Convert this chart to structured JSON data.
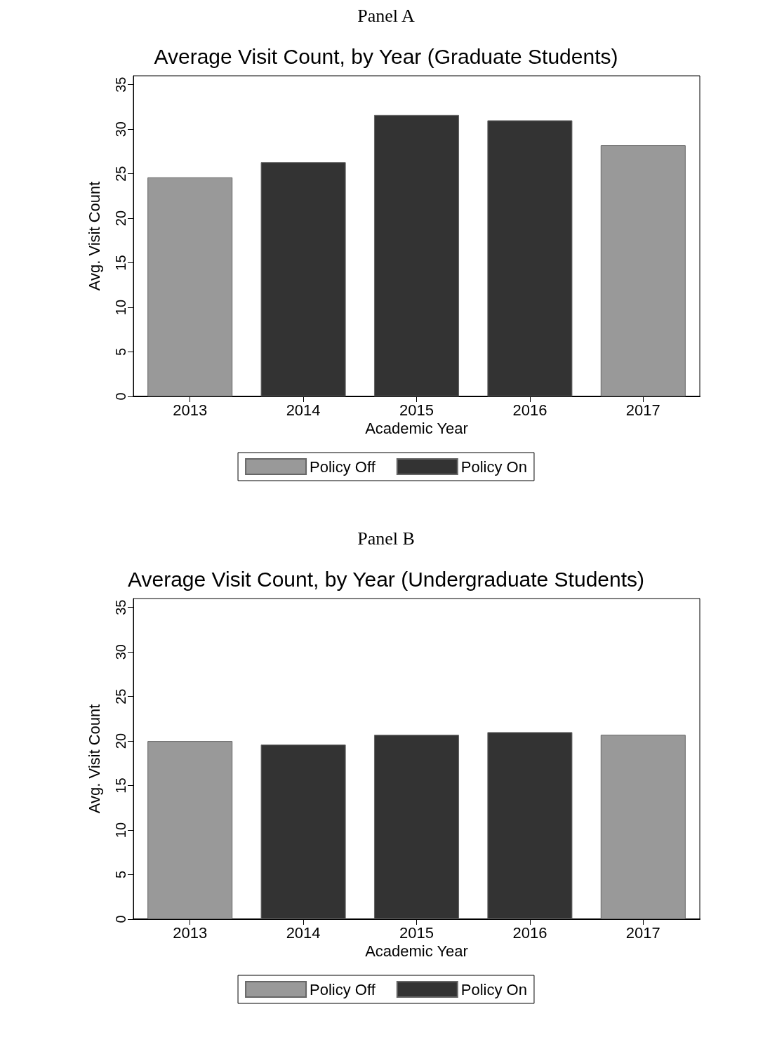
{
  "chart_data": [
    {
      "type": "bar",
      "annotations": [
        "Panel A"
      ],
      "title": "Average Visit Count, by Year (Graduate Students)",
      "xlabel": "Academic Year",
      "ylabel": "Avg. Visit Count",
      "categories": [
        "2013",
        "2014",
        "2015",
        "2016",
        "2017"
      ],
      "series": [
        {
          "name": "Policy Off",
          "color": "#999999",
          "values": [
            24.6,
            null,
            null,
            null,
            28.2
          ]
        },
        {
          "name": "Policy On",
          "color": "#333333",
          "values": [
            null,
            26.3,
            31.6,
            31.0,
            null
          ]
        }
      ],
      "ylim": [
        0,
        36
      ],
      "yticks": [
        0,
        5,
        10,
        15,
        20,
        25,
        30,
        35
      ],
      "grid": false,
      "legend": "bottom"
    },
    {
      "type": "bar",
      "annotations": [
        "Panel B"
      ],
      "title": "Average Visit Count, by Year (Undergraduate Students)",
      "xlabel": "Academic Year",
      "ylabel": "Avg. Visit Count",
      "categories": [
        "2013",
        "2014",
        "2015",
        "2016",
        "2017"
      ],
      "series": [
        {
          "name": "Policy Off",
          "color": "#999999",
          "values": [
            20.0,
            null,
            null,
            null,
            20.7
          ]
        },
        {
          "name": "Policy On",
          "color": "#333333",
          "values": [
            null,
            19.6,
            20.7,
            21.0,
            null
          ]
        }
      ],
      "ylim": [
        0,
        36
      ],
      "yticks": [
        0,
        5,
        10,
        15,
        20,
        25,
        30,
        35
      ],
      "grid": false,
      "legend": "bottom"
    }
  ]
}
